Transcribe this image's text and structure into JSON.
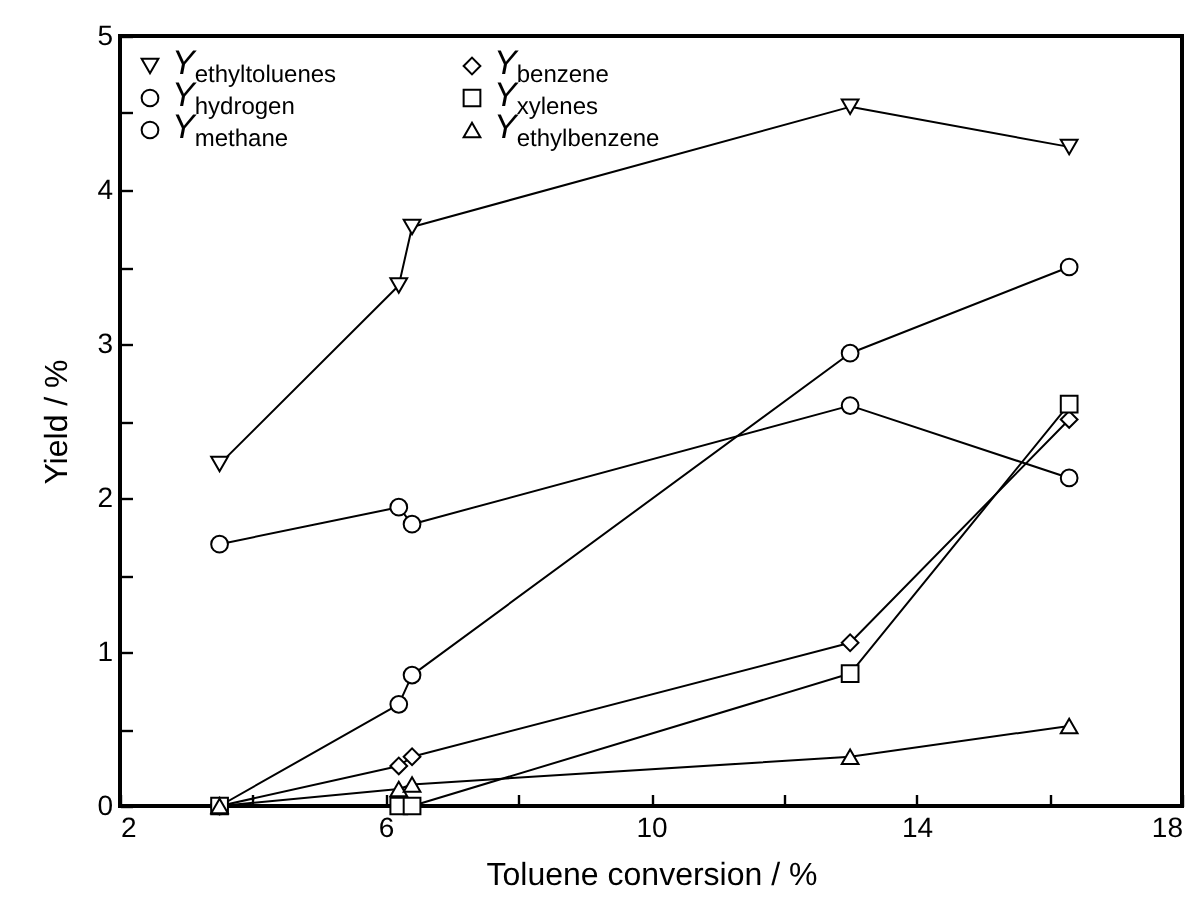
{
  "chart_data": {
    "type": "line",
    "xlabel": "Toluene conversion / %",
    "ylabel": "Yield / %",
    "x": [
      3.5,
      6.2,
      6.4,
      13,
      16.3
    ],
    "xlim": [
      2,
      18
    ],
    "xticks": [
      2,
      {
        "value": 4,
        "label": null
      },
      6,
      {
        "value": 8,
        "label": null
      },
      10,
      {
        "value": 12,
        "label": null
      },
      14,
      {
        "value": 16,
        "label": null
      },
      18
    ],
    "ylim": [
      0,
      5
    ],
    "yticks": [
      0,
      {
        "value": 0.5,
        "label": null
      },
      1,
      {
        "value": 1.5,
        "label": null
      },
      2,
      {
        "value": 2.5,
        "label": null
      },
      3,
      {
        "value": 3.5,
        "label": null
      },
      4,
      {
        "value": 4.5,
        "label": null
      },
      5
    ],
    "legend": "top left",
    "line_style": "solid",
    "series": [
      {
        "name": "Y$_{ethyltoluenes}$",
        "color": "#000000",
        "marker": "triangle-down",
        "values": [
          2.22,
          3.38,
          3.76,
          4.54,
          4.28
        ]
      },
      {
        "name": "Y$_{hydrogen}$",
        "color": "#000000",
        "marker": "circle",
        "values": [
          1.7,
          1.94,
          1.83,
          2.6,
          2.13
        ]
      },
      {
        "name": "Y$_{methane}$",
        "color": "#000000",
        "marker": "circle",
        "values": [
          0,
          0.66,
          0.85,
          2.94,
          3.5
        ]
      },
      {
        "name": "Y$_{benzene}$",
        "color": "#000000",
        "marker": "diamond",
        "values": [
          0,
          0.26,
          0.32,
          1.06,
          2.51
        ]
      },
      {
        "name": "Y$_{xylenes}$",
        "color": "#000000",
        "marker": "square",
        "values": [
          0,
          0,
          0,
          0.86,
          2.61
        ]
      },
      {
        "name": "Y$_{ethylbenzene}$",
        "color": "#000000",
        "marker": "triangle",
        "values": [
          0,
          0.11,
          0.14,
          0.32,
          0.52
        ]
      }
    ]
  }
}
